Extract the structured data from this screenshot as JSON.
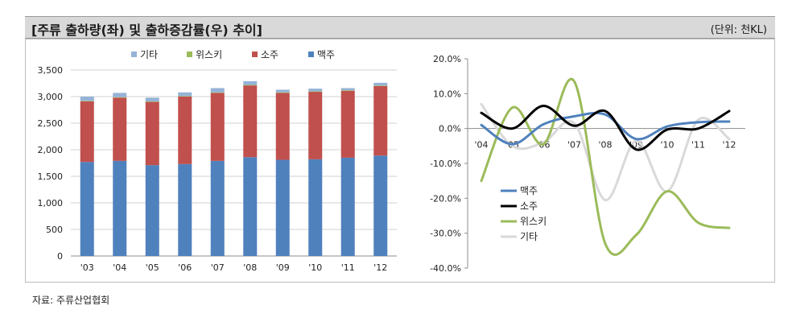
{
  "header": {
    "title": "[주류 출하량(좌) 및 출하증감률(우) 추이]",
    "unit": "(단위: 천KL)"
  },
  "source": "자료: 주류산업협회",
  "colors": {
    "beer": "#4f81bd",
    "soju": "#c0504d",
    "whisky": "#9bbb59",
    "other": "#95b3d7",
    "beer_line": "#4f81bd",
    "soju_line": "#000000",
    "whisky_line": "#9bbb59",
    "other_line": "#d9d9d9"
  },
  "chart_data": [
    {
      "type": "bar",
      "stacked": true,
      "categories": [
        "'03",
        "'04",
        "'05",
        "'06",
        "'07",
        "'08",
        "'09",
        "'10",
        "'11",
        "'12"
      ],
      "series": [
        {
          "name": "맥주",
          "values": [
            1770,
            1790,
            1710,
            1730,
            1790,
            1860,
            1810,
            1820,
            1850,
            1890
          ]
        },
        {
          "name": "소주",
          "values": [
            1140,
            1190,
            1190,
            1270,
            1280,
            1350,
            1260,
            1270,
            1260,
            1310
          ]
        },
        {
          "name": "위스키",
          "values": [
            10,
            10,
            10,
            10,
            10,
            10,
            10,
            10,
            10,
            10
          ]
        },
        {
          "name": "기타",
          "values": [
            80,
            80,
            70,
            70,
            80,
            70,
            50,
            50,
            40,
            50
          ]
        }
      ],
      "legend_order": [
        "기타",
        "위스키",
        "소주",
        "맥주"
      ],
      "yticks": [
        "0",
        "500",
        "1,000",
        "1,500",
        "2,000",
        "2,500",
        "3,000",
        "3,500"
      ],
      "ylim": [
        0,
        3500
      ],
      "grid": true,
      "legend": "top"
    },
    {
      "type": "line",
      "smooth": true,
      "categories": [
        "'04",
        "'05",
        "'06",
        "'07",
        "'08",
        "'09",
        "'10",
        "'11",
        "'12"
      ],
      "series": [
        {
          "name": "맥주",
          "values": [
            1.0,
            -4.5,
            1.2,
            3.5,
            4.0,
            -3.0,
            0.6,
            1.8,
            2.0
          ]
        },
        {
          "name": "소주",
          "values": [
            4.5,
            0.0,
            6.5,
            0.8,
            5.0,
            -6.0,
            -0.3,
            0.0,
            5.0
          ]
        },
        {
          "name": "위스키",
          "values": [
            -15.0,
            6.0,
            -4.5,
            13.5,
            -33.0,
            -30.5,
            -18.0,
            -27.0,
            -28.5
          ]
        },
        {
          "name": "기타",
          "values": [
            7.0,
            -5.0,
            -4.0,
            1.5,
            -20.5,
            -3.5,
            -18.0,
            2.5,
            -3.0
          ]
        }
      ],
      "yticks": [
        "20.0%",
        "10.0%",
        "0.0%",
        "-10.0%",
        "-20.0%",
        "-30.0%",
        "-40.0%"
      ],
      "ylim": [
        -40,
        20
      ],
      "grid": false,
      "legend": "bottom-left"
    }
  ]
}
